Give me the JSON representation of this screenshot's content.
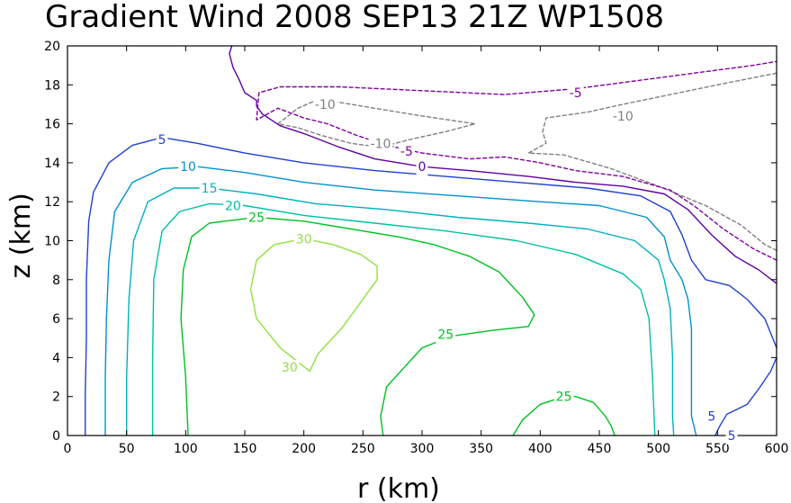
{
  "chart_data": {
    "type": "contour",
    "title": "Gradient Wind 2008 SEP13 21Z  WP1508",
    "xlabel": "r (km)",
    "ylabel": "z (km)",
    "xlim": [
      0,
      600
    ],
    "ylim": [
      0,
      20
    ],
    "x_ticks": [
      0,
      50,
      100,
      150,
      200,
      250,
      300,
      350,
      400,
      450,
      500,
      550,
      600
    ],
    "y_ticks": [
      0,
      2,
      4,
      6,
      8,
      10,
      12,
      14,
      16,
      18,
      20
    ],
    "grid": false,
    "contours": [
      {
        "level": -10,
        "label": "-10",
        "color": "#808080",
        "dashed": true,
        "points": [
          [
            178,
            16.0
          ],
          [
            195,
            16.8
          ],
          [
            210,
            17.2
          ],
          [
            230,
            17.1
          ],
          [
            260,
            16.8
          ],
          [
            300,
            16.4
          ],
          [
            345,
            16.0
          ],
          [
            320,
            15.6
          ],
          [
            290,
            15.2
          ],
          [
            265,
            14.8
          ],
          [
            240,
            15.0
          ],
          [
            215,
            15.4
          ],
          [
            195,
            15.8
          ],
          [
            178,
            16.0
          ]
        ],
        "labels": [
          {
            "x": 218,
            "y": 17.0
          },
          {
            "x": 265,
            "y": 15.0
          }
        ]
      },
      {
        "level": -10,
        "label": "-10",
        "color": "#808080",
        "dashed": true,
        "points": [
          [
            600,
            9.5
          ],
          [
            590,
            9.8
          ],
          [
            570,
            10.8
          ],
          [
            540,
            11.8
          ],
          [
            500,
            12.8
          ],
          [
            460,
            13.7
          ],
          [
            420,
            14.4
          ],
          [
            390,
            14.5
          ],
          [
            405,
            15.0
          ],
          [
            402,
            15.6
          ],
          [
            405,
            16.3
          ],
          [
            440,
            16.6
          ],
          [
            470,
            17.0
          ],
          [
            510,
            17.5
          ],
          [
            550,
            18.0
          ],
          [
            600,
            18.6
          ]
        ],
        "labels": [
          {
            "x": 470,
            "y": 16.4
          }
        ]
      },
      {
        "level": -5,
        "label": "-5",
        "color": "#8000a0",
        "dashed": true,
        "points": [
          [
            600,
            9.0
          ],
          [
            580,
            9.6
          ],
          [
            555,
            10.6
          ],
          [
            530,
            11.8
          ],
          [
            510,
            12.6
          ],
          [
            470,
            13.3
          ],
          [
            430,
            13.6
          ],
          [
            400,
            14.0
          ],
          [
            370,
            14.3
          ],
          [
            340,
            14.2
          ],
          [
            300,
            14.5
          ],
          [
            270,
            14.9
          ],
          [
            245,
            15.4
          ],
          [
            220,
            16.0
          ],
          [
            200,
            16.3
          ],
          [
            178,
            16.8
          ],
          [
            160,
            16.2
          ],
          [
            162,
            17.6
          ],
          [
            180,
            17.9
          ],
          [
            230,
            17.9
          ],
          [
            300,
            17.7
          ],
          [
            370,
            17.5
          ],
          [
            430,
            17.8
          ],
          [
            480,
            18.2
          ],
          [
            530,
            18.6
          ],
          [
            580,
            19.0
          ],
          [
            600,
            19.2
          ]
        ],
        "labels": [
          {
            "x": 287,
            "y": 14.6
          },
          {
            "x": 430,
            "y": 17.6
          }
        ]
      },
      {
        "level": 0,
        "label": "0",
        "color": "#6000a0",
        "dashed": false,
        "points": [
          [
            600,
            7.8
          ],
          [
            585,
            8.5
          ],
          [
            565,
            9.2
          ],
          [
            545,
            10.3
          ],
          [
            525,
            11.6
          ],
          [
            505,
            12.4
          ],
          [
            470,
            12.8
          ],
          [
            430,
            13.0
          ],
          [
            390,
            13.3
          ],
          [
            340,
            13.6
          ],
          [
            300,
            13.8
          ],
          [
            260,
            14.2
          ],
          [
            230,
            14.8
          ],
          [
            200,
            15.5
          ],
          [
            180,
            15.9
          ],
          [
            165,
            16.5
          ],
          [
            160,
            16.9
          ],
          [
            160,
            17.2
          ],
          [
            150,
            17.6
          ],
          [
            145,
            18.3
          ],
          [
            140,
            18.9
          ],
          [
            137,
            19.6
          ],
          [
            139,
            20.0
          ]
        ],
        "labels": [
          {
            "x": 300,
            "y": 13.8
          }
        ]
      },
      {
        "level": 5,
        "label": "5",
        "color": "#2040d0",
        "dashed": false,
        "points": [
          [
            15,
            0.0
          ],
          [
            15,
            2.0
          ],
          [
            16,
            5.0
          ],
          [
            16,
            8.0
          ],
          [
            18,
            11.0
          ],
          [
            22,
            12.5
          ],
          [
            35,
            14.0
          ],
          [
            55,
            14.9
          ],
          [
            80,
            15.3
          ],
          [
            110,
            15.0
          ],
          [
            150,
            14.5
          ],
          [
            200,
            14.0
          ],
          [
            260,
            13.6
          ],
          [
            320,
            13.3
          ],
          [
            380,
            13.0
          ],
          [
            440,
            12.7
          ],
          [
            485,
            12.3
          ],
          [
            510,
            11.5
          ],
          [
            520,
            10.3
          ],
          [
            528,
            9.0
          ],
          [
            540,
            8.0
          ],
          [
            560,
            7.7
          ],
          [
            575,
            7.0
          ],
          [
            590,
            6.0
          ],
          [
            598,
            4.8
          ],
          [
            600,
            4.5
          ]
        ],
        "labels": [
          {
            "x": 80,
            "y": 15.2
          }
        ]
      },
      {
        "level": 5,
        "label": "5",
        "color": "#2040d0",
        "dashed": false,
        "points": [
          [
            600,
            4.0
          ],
          [
            595,
            3.3
          ],
          [
            585,
            2.4
          ],
          [
            575,
            1.6
          ],
          [
            565,
            1.3
          ],
          [
            558,
            1.1
          ],
          [
            552,
            0.5
          ],
          [
            548,
            0.0
          ]
        ],
        "labels": [
          {
            "x": 545,
            "y": 1.0
          },
          {
            "x": 562,
            "y": 0.0
          }
        ]
      },
      {
        "level": 10,
        "label": "10",
        "color": "#0090d0",
        "dashed": false,
        "points": [
          [
            32,
            0.0
          ],
          [
            32,
            3.0
          ],
          [
            33,
            6.0
          ],
          [
            35,
            9.0
          ],
          [
            40,
            11.5
          ],
          [
            55,
            13.0
          ],
          [
            80,
            13.7
          ],
          [
            110,
            13.8
          ],
          [
            150,
            13.5
          ],
          [
            200,
            13.0
          ],
          [
            260,
            12.6
          ],
          [
            330,
            12.3
          ],
          [
            400,
            12.0
          ],
          [
            450,
            11.8
          ],
          [
            490,
            11.2
          ],
          [
            505,
            10.2
          ],
          [
            510,
            9.0
          ],
          [
            520,
            8.0
          ],
          [
            525,
            7.0
          ],
          [
            528,
            5.5
          ],
          [
            528,
            3.0
          ],
          [
            528,
            1.0
          ],
          [
            532,
            0.0
          ]
        ],
        "labels": [
          {
            "x": 102,
            "y": 13.8
          }
        ]
      },
      {
        "level": 15,
        "label": "15",
        "color": "#00b0c0",
        "dashed": false,
        "points": [
          [
            50,
            0.0
          ],
          [
            50,
            3.0
          ],
          [
            52,
            7.0
          ],
          [
            56,
            10.0
          ],
          [
            68,
            12.0
          ],
          [
            90,
            12.7
          ],
          [
            120,
            12.7
          ],
          [
            160,
            12.4
          ],
          [
            210,
            11.9
          ],
          [
            270,
            11.6
          ],
          [
            330,
            11.2
          ],
          [
            390,
            10.9
          ],
          [
            440,
            10.6
          ],
          [
            480,
            10.0
          ],
          [
            500,
            9.0
          ],
          [
            505,
            8.0
          ],
          [
            510,
            6.5
          ],
          [
            512,
            4.0
          ],
          [
            512,
            1.0
          ],
          [
            513,
            0.0
          ]
        ],
        "labels": [
          {
            "x": 120,
            "y": 12.7
          }
        ]
      },
      {
        "level": 20,
        "label": "20",
        "color": "#00c0a0",
        "dashed": false,
        "points": [
          [
            72,
            0.0
          ],
          [
            72,
            4.0
          ],
          [
            73,
            8.0
          ],
          [
            80,
            10.5
          ],
          [
            95,
            11.5
          ],
          [
            120,
            11.9
          ],
          [
            150,
            11.8
          ],
          [
            200,
            11.3
          ],
          [
            260,
            10.9
          ],
          [
            320,
            10.5
          ],
          [
            380,
            10.0
          ],
          [
            430,
            9.3
          ],
          [
            470,
            8.3
          ],
          [
            485,
            7.5
          ],
          [
            492,
            6.0
          ],
          [
            495,
            3.0
          ],
          [
            497,
            0.0
          ]
        ],
        "labels": [
          {
            "x": 140,
            "y": 11.8
          }
        ]
      },
      {
        "level": 25,
        "label": "25",
        "color": "#00c020",
        "dashed": false,
        "points": [
          [
            102,
            0.0
          ],
          [
            100,
            3.0
          ],
          [
            96,
            6.0
          ],
          [
            98,
            8.5
          ],
          [
            105,
            10.2
          ],
          [
            120,
            10.9
          ],
          [
            160,
            11.2
          ],
          [
            200,
            11.0
          ],
          [
            240,
            10.6
          ],
          [
            280,
            10.2
          ],
          [
            310,
            9.8
          ],
          [
            340,
            9.2
          ],
          [
            365,
            8.4
          ],
          [
            385,
            7.1
          ],
          [
            395,
            6.2
          ],
          [
            390,
            5.6
          ],
          [
            360,
            5.4
          ],
          [
            325,
            5.1
          ],
          [
            300,
            4.5
          ],
          [
            285,
            3.5
          ],
          [
            270,
            2.5
          ],
          [
            265,
            1.0
          ],
          [
            267,
            0.0
          ]
        ],
        "labels": [
          {
            "x": 160,
            "y": 11.2
          },
          {
            "x": 320,
            "y": 5.2
          }
        ]
      },
      {
        "level": 25,
        "label": "25",
        "color": "#00c020",
        "dashed": false,
        "points": [
          [
            377,
            0.0
          ],
          [
            385,
            0.8
          ],
          [
            400,
            1.6
          ],
          [
            420,
            2.0
          ],
          [
            430,
            2.0
          ],
          [
            445,
            1.7
          ],
          [
            455,
            1.0
          ],
          [
            460,
            0.5
          ],
          [
            463,
            0.0
          ]
        ],
        "labels": [
          {
            "x": 420,
            "y": 2.0
          }
        ]
      },
      {
        "level": 30,
        "label": "30",
        "color": "#90e040",
        "dashed": false,
        "points": [
          [
            205,
            3.3
          ],
          [
            180,
            4.5
          ],
          [
            160,
            6.0
          ],
          [
            155,
            7.5
          ],
          [
            160,
            9.0
          ],
          [
            175,
            9.8
          ],
          [
            200,
            10.1
          ],
          [
            225,
            9.8
          ],
          [
            248,
            9.3
          ],
          [
            262,
            8.7
          ],
          [
            262,
            8.0
          ],
          [
            250,
            7.0
          ],
          [
            232,
            5.5
          ],
          [
            212,
            4.2
          ],
          [
            205,
            3.3
          ]
        ],
        "labels": [
          {
            "x": 200,
            "y": 10.1
          },
          {
            "x": 188,
            "y": 3.5
          }
        ]
      }
    ]
  }
}
